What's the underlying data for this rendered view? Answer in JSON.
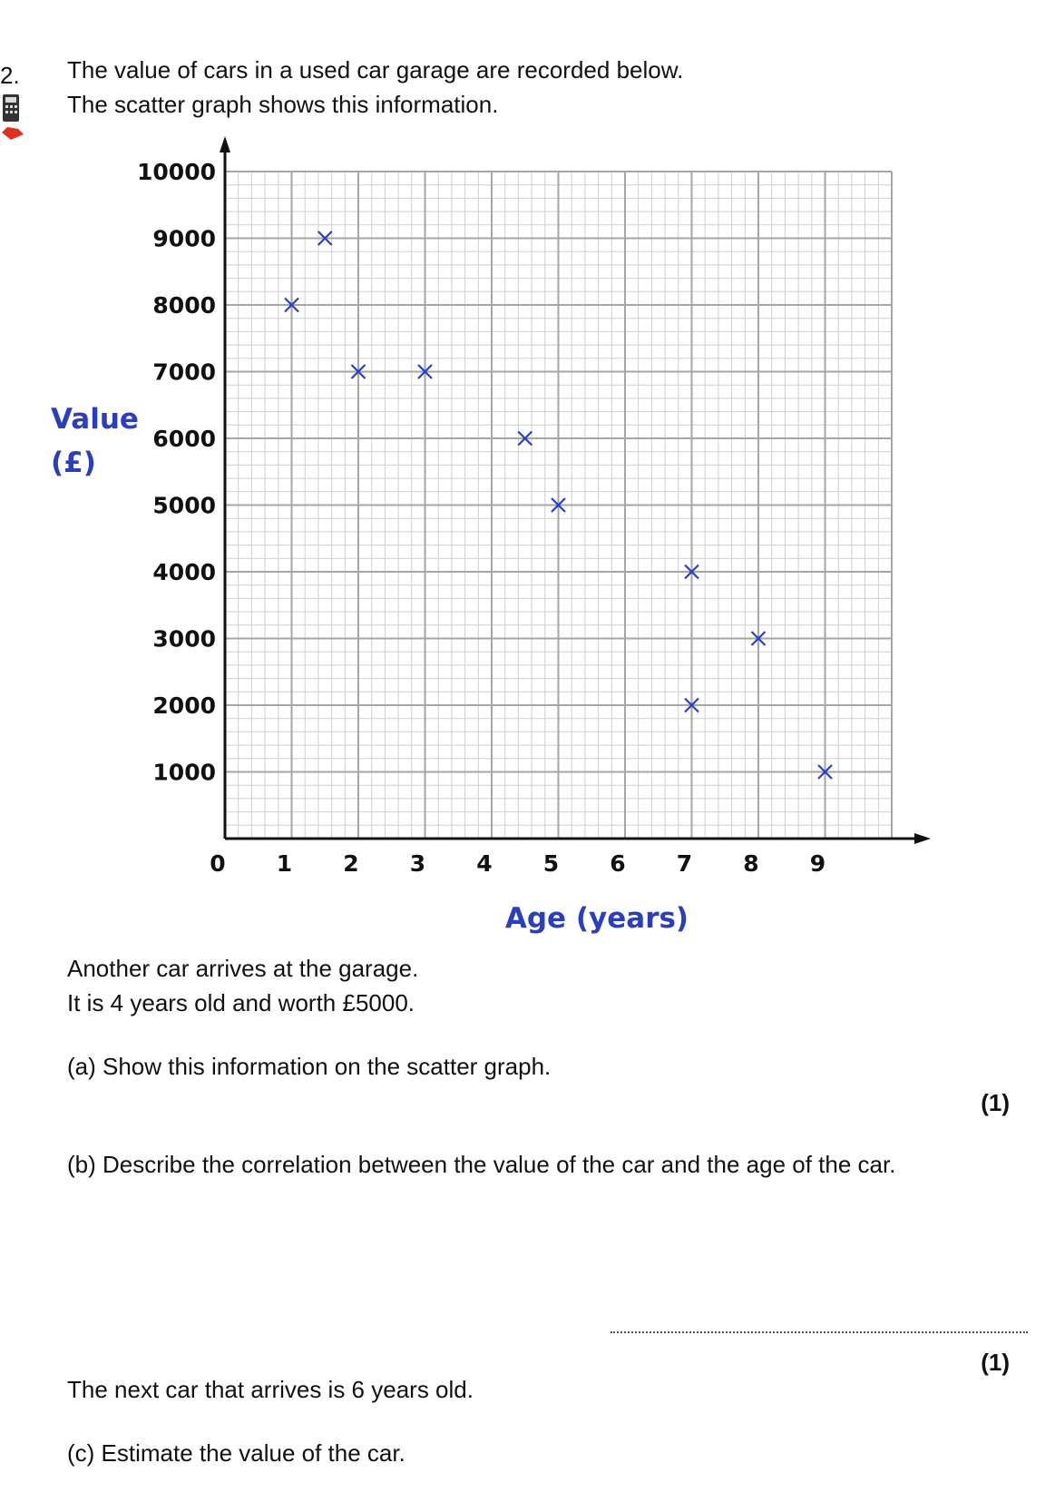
{
  "question": {
    "number": "2.",
    "intro_line1": "The value of cars in a used car garage are recorded below.",
    "intro_line2": "The scatter graph shows this information.",
    "after_graph_line1": "Another car arrives at the garage.",
    "after_graph_line2": "It is 4 years old and worth £5000.",
    "part_a": "(a)  Show this information on the scatter graph.",
    "part_a_marks": "(1)",
    "part_b": "(b)  Describe the correlation between the value of the car and the age of the car.",
    "part_b_marks": "(1)",
    "next_car": "The next car that arrives is 6 years old.",
    "part_c": "(c)  Estimate the value of the car."
  },
  "icons": {
    "calculator": "calculator-icon"
  },
  "colors": {
    "marker": "#2a3fbf",
    "axis_label": "#2a3fbf",
    "grid_major": "#a6a6a6",
    "grid_minor": "#cfcfcf"
  },
  "chart_data": {
    "type": "scatter",
    "xlabel": "Age (years)",
    "ylabel_line1": "Value",
    "ylabel_line2": "(£)",
    "xlim": [
      0,
      10
    ],
    "ylim": [
      0,
      10000
    ],
    "x_ticks": [
      "0",
      "1",
      "2",
      "3",
      "4",
      "5",
      "6",
      "7",
      "8",
      "9"
    ],
    "y_ticks": [
      "1000",
      "2000",
      "3000",
      "4000",
      "5000",
      "6000",
      "7000",
      "8000",
      "9000",
      "10000"
    ],
    "grid": true,
    "marker": "cross",
    "points": [
      {
        "x": 1.5,
        "y": 9000
      },
      {
        "x": 1,
        "y": 8000
      },
      {
        "x": 2,
        "y": 7000
      },
      {
        "x": 3,
        "y": 7000
      },
      {
        "x": 4.5,
        "y": 6000
      },
      {
        "x": 5,
        "y": 5000
      },
      {
        "x": 7,
        "y": 4000
      },
      {
        "x": 8,
        "y": 3000
      },
      {
        "x": 7,
        "y": 2000
      },
      {
        "x": 9,
        "y": 1000
      }
    ]
  }
}
